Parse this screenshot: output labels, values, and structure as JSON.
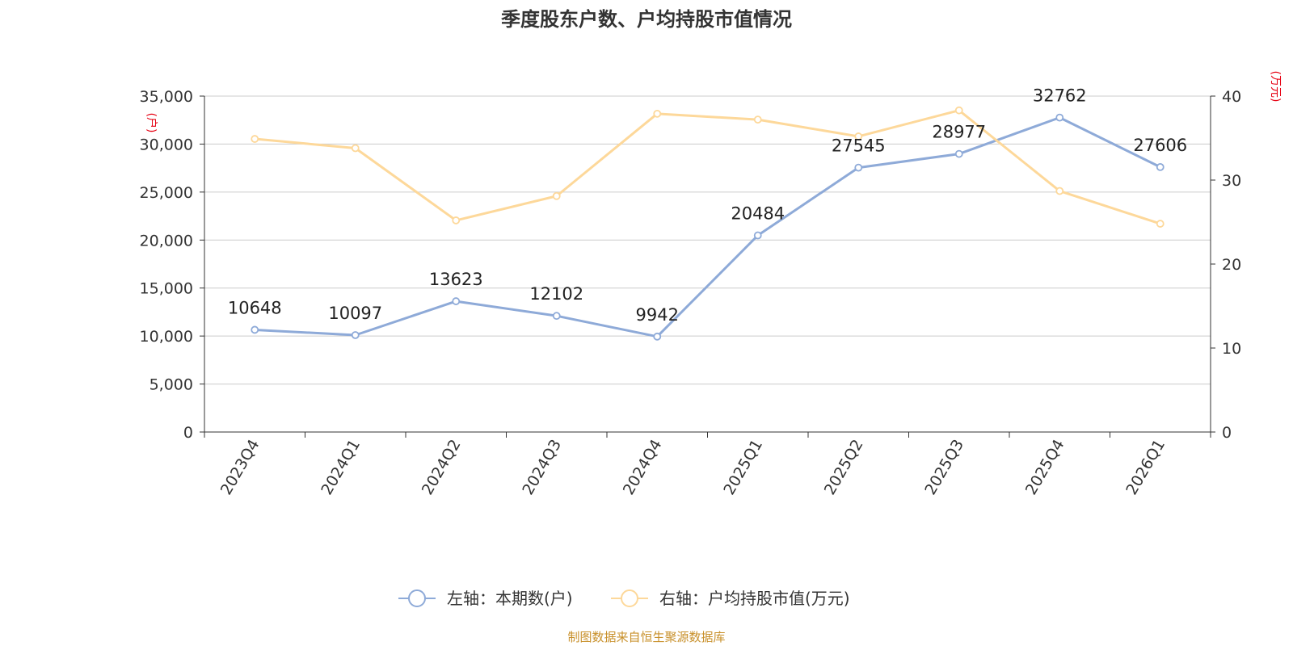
{
  "chart_data": {
    "type": "line",
    "title": "季度股东户数、户均持股市值情况",
    "categories": [
      "2023Q4",
      "2024Q1",
      "2024Q2",
      "2024Q3",
      "2024Q4",
      "2025Q1",
      "2025Q2",
      "2025Q3",
      "2025Q4",
      "2026Q1"
    ],
    "left_axis": {
      "unit": "(户)",
      "ylim": [
        0,
        35000
      ],
      "ticks": [
        "0",
        "5,000",
        "10,000",
        "15,000",
        "20,000",
        "25,000",
        "30,000",
        "35,000"
      ],
      "tick_values": [
        0,
        5000,
        10000,
        15000,
        20000,
        25000,
        30000,
        35000
      ]
    },
    "right_axis": {
      "unit": "(万元)",
      "ylim": [
        0,
        40
      ],
      "ticks": [
        "0",
        "10",
        "20",
        "30",
        "40"
      ],
      "tick_values": [
        0,
        10,
        20,
        30,
        40
      ]
    },
    "grid": true,
    "series": [
      {
        "name": "左轴：本期数(户)",
        "axis": "left",
        "color": "#8eaad8",
        "values": [
          10648,
          10097,
          13623,
          12102,
          9942,
          20484,
          27545,
          28977,
          32762,
          27606
        ],
        "labels": [
          "10648",
          "10097",
          "13623",
          "12102",
          "9942",
          "20484",
          "27545",
          "28977",
          "32762",
          "27606"
        ]
      },
      {
        "name": "右轴：户均持股市值(万元)",
        "axis": "right",
        "color": "#fdd89a",
        "values": [
          34.9,
          33.8,
          25.2,
          28.1,
          37.9,
          37.2,
          35.2,
          38.3,
          28.7,
          24.8
        ]
      }
    ],
    "legend_position": "bottom-center",
    "source": "制图数据来自恒生聚源数据库"
  }
}
